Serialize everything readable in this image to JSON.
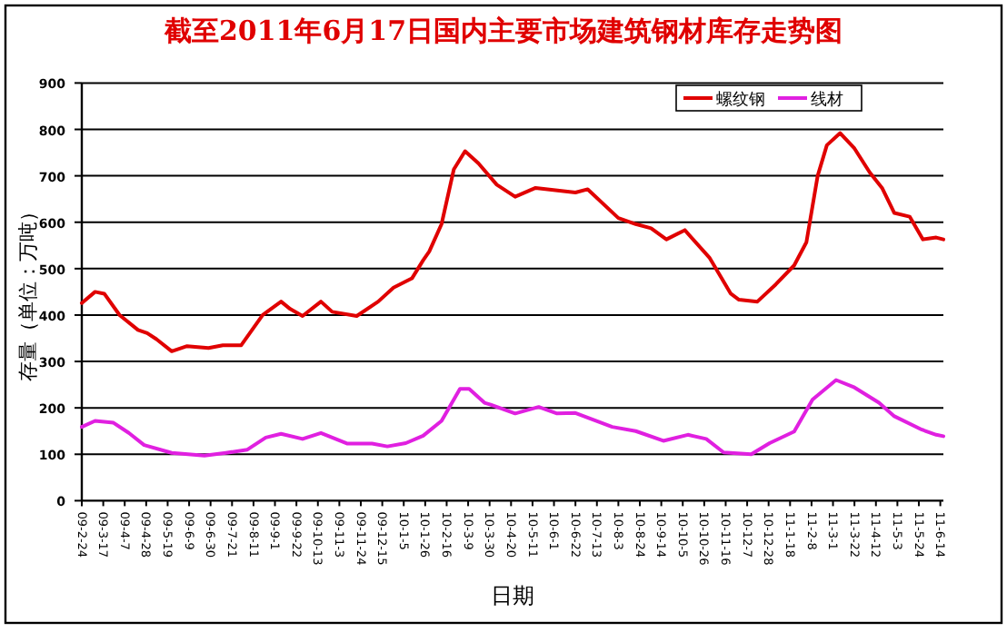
{
  "chart_data": {
    "type": "line",
    "title": "截至2011年6月17日国内主要市场建筑钢材库存走势图",
    "xlabel": "日期",
    "ylabel": "存量（单位：万吨）",
    "ylim": [
      0,
      900
    ],
    "yticks": [
      0,
      100,
      200,
      300,
      400,
      500,
      600,
      700,
      800,
      900
    ],
    "xlim": [
      "2009-02-24",
      "2011-06-17"
    ],
    "xticks": [
      {
        "value": "2009-02-24",
        "label": "09-2-24"
      },
      {
        "value": "2009-03-17",
        "label": "09-3-17"
      },
      {
        "value": "2009-04-07",
        "label": "09-4-7"
      },
      {
        "value": "2009-04-28",
        "label": "09-4-28"
      },
      {
        "value": "2009-05-19",
        "label": "09-5-19"
      },
      {
        "value": "2009-06-09",
        "label": "09-6-9"
      },
      {
        "value": "2009-06-30",
        "label": "09-6-30"
      },
      {
        "value": "2009-07-21",
        "label": "09-7-21"
      },
      {
        "value": "2009-08-11",
        "label": "09-8-11"
      },
      {
        "value": "2009-09-01",
        "label": "09-9-1"
      },
      {
        "value": "2009-09-22",
        "label": "09-9-22"
      },
      {
        "value": "2009-10-13",
        "label": "09-10-13"
      },
      {
        "value": "2009-11-03",
        "label": "09-11-3"
      },
      {
        "value": "2009-11-24",
        "label": "09-11-24"
      },
      {
        "value": "2009-12-15",
        "label": "09-12-15"
      },
      {
        "value": "2010-01-05",
        "label": "10-1-5"
      },
      {
        "value": "2010-01-26",
        "label": "10-1-26"
      },
      {
        "value": "2010-02-16",
        "label": "10-2-16"
      },
      {
        "value": "2010-03-09",
        "label": "10-3-9"
      },
      {
        "value": "2010-03-30",
        "label": "10-3-30"
      },
      {
        "value": "2010-04-20",
        "label": "10-4-20"
      },
      {
        "value": "2010-05-11",
        "label": "10-5-11"
      },
      {
        "value": "2010-06-01",
        "label": "10-6-1"
      },
      {
        "value": "2010-06-22",
        "label": "10-6-22"
      },
      {
        "value": "2010-07-13",
        "label": "10-7-13"
      },
      {
        "value": "2010-08-03",
        "label": "10-8-3"
      },
      {
        "value": "2010-08-24",
        "label": "10-8-24"
      },
      {
        "value": "2010-09-14",
        "label": "10-9-14"
      },
      {
        "value": "2010-10-05",
        "label": "10-10-5"
      },
      {
        "value": "2010-10-26",
        "label": "10-10-26"
      },
      {
        "value": "2010-11-16",
        "label": "10-11-16"
      },
      {
        "value": "2010-12-07",
        "label": "10-12-7"
      },
      {
        "value": "2010-12-28",
        "label": "10-12-28"
      },
      {
        "value": "2011-01-18",
        "label": "11-1-18"
      },
      {
        "value": "2011-02-08",
        "label": "11-2-8"
      },
      {
        "value": "2011-03-01",
        "label": "11-3-1"
      },
      {
        "value": "2011-03-22",
        "label": "11-3-22"
      },
      {
        "value": "2011-04-12",
        "label": "11-4-12"
      },
      {
        "value": "2011-05-03",
        "label": "11-5-3"
      },
      {
        "value": "2011-05-24",
        "label": "11-5-24"
      },
      {
        "value": "2011-06-14",
        "label": "11-6-14"
      }
    ],
    "grid": "y",
    "legend": "top right",
    "series": [
      {
        "name": "螺纹钢",
        "color": "#e00000",
        "x": [
          "2009-02-24",
          "2009-03-09",
          "2009-03-18",
          "2009-04-02",
          "2009-04-20",
          "2009-04-29",
          "2009-05-08",
          "2009-05-23",
          "2009-06-07",
          "2009-06-28",
          "2009-07-12",
          "2009-07-30",
          "2009-08-20",
          "2009-09-07",
          "2009-09-16",
          "2009-09-28",
          "2009-10-16",
          "2009-10-27",
          "2009-11-20",
          "2009-12-11",
          "2009-12-26",
          "2010-01-13",
          "2010-01-24",
          "2010-01-30",
          "2010-02-11",
          "2010-02-23",
          "2010-03-06",
          "2010-03-19",
          "2010-04-06",
          "2010-04-24",
          "2010-05-14",
          "2010-06-22",
          "2010-07-04",
          "2010-08-03",
          "2010-08-20",
          "2010-09-04",
          "2010-09-19",
          "2010-10-07",
          "2010-10-31",
          "2010-11-21",
          "2010-11-29",
          "2010-12-17",
          "2011-01-04",
          "2011-01-22",
          "2011-02-03",
          "2011-02-14",
          "2011-02-23",
          "2011-03-08",
          "2011-03-22",
          "2011-04-06",
          "2011-04-18",
          "2011-04-30",
          "2011-05-15",
          "2011-05-28",
          "2011-06-10",
          "2011-06-17"
        ],
        "values": [
          426,
          450,
          446,
          400,
          368,
          361,
          348,
          322,
          333,
          329,
          335,
          335,
          400,
          429,
          413,
          398,
          429,
          407,
          398,
          429,
          459,
          479,
          518,
          537,
          596,
          714,
          753,
          727,
          681,
          655,
          674,
          664,
          671,
          609,
          596,
          587,
          563,
          583,
          524,
          446,
          433,
          429,
          466,
          507,
          557,
          700,
          766,
          792,
          759,
          707,
          674,
          620,
          612,
          563,
          567,
          563
        ]
      },
      {
        "name": "线材",
        "color": "#e020e0",
        "x": [
          "2009-02-24",
          "2009-03-09",
          "2009-03-27",
          "2009-04-11",
          "2009-04-26",
          "2009-05-23",
          "2009-06-24",
          "2009-07-15",
          "2009-08-05",
          "2009-08-23",
          "2009-09-07",
          "2009-09-28",
          "2009-10-16",
          "2009-11-11",
          "2009-12-05",
          "2009-12-20",
          "2010-01-07",
          "2010-01-24",
          "2010-02-11",
          "2010-03-01",
          "2010-03-10",
          "2010-03-25",
          "2010-03-31",
          "2010-04-24",
          "2010-05-17",
          "2010-06-04",
          "2010-06-22",
          "2010-07-28",
          "2010-08-20",
          "2010-09-16",
          "2010-10-10",
          "2010-10-28",
          "2010-11-14",
          "2010-12-11",
          "2010-12-29",
          "2011-01-22",
          "2011-02-09",
          "2011-03-04",
          "2011-03-22",
          "2011-04-15",
          "2011-04-30",
          "2011-05-27",
          "2011-06-10",
          "2011-06-17"
        ],
        "values": [
          159,
          172,
          168,
          146,
          120,
          103,
          97,
          103,
          110,
          136,
          144,
          133,
          146,
          123,
          123,
          117,
          124,
          140,
          172,
          241,
          241,
          211,
          207,
          188,
          202,
          188,
          189,
          159,
          150,
          129,
          142,
          133,
          104,
          100,
          124,
          149,
          218,
          260,
          244,
          211,
          182,
          153,
          142,
          139
        ]
      }
    ]
  }
}
